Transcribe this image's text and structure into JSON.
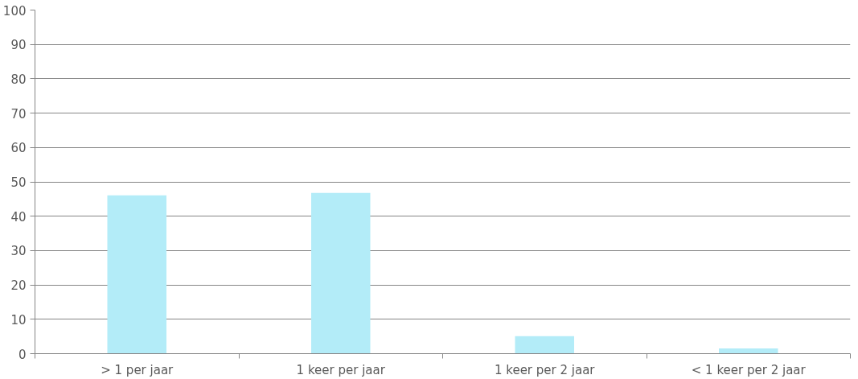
{
  "chart_data": {
    "type": "bar",
    "categories": [
      "> 1 per jaar",
      "1 keer per jaar",
      "1 keer per 2 jaar",
      "< 1 keer per 2 jaar"
    ],
    "values": [
      46.1,
      46.8,
      5.1,
      1.5
    ],
    "color": "#b3ecf8",
    "ylim": [
      0,
      100
    ],
    "yticks": [
      0,
      10,
      20,
      30,
      40,
      50,
      60,
      70,
      80,
      90,
      100
    ],
    "grid": "y"
  }
}
